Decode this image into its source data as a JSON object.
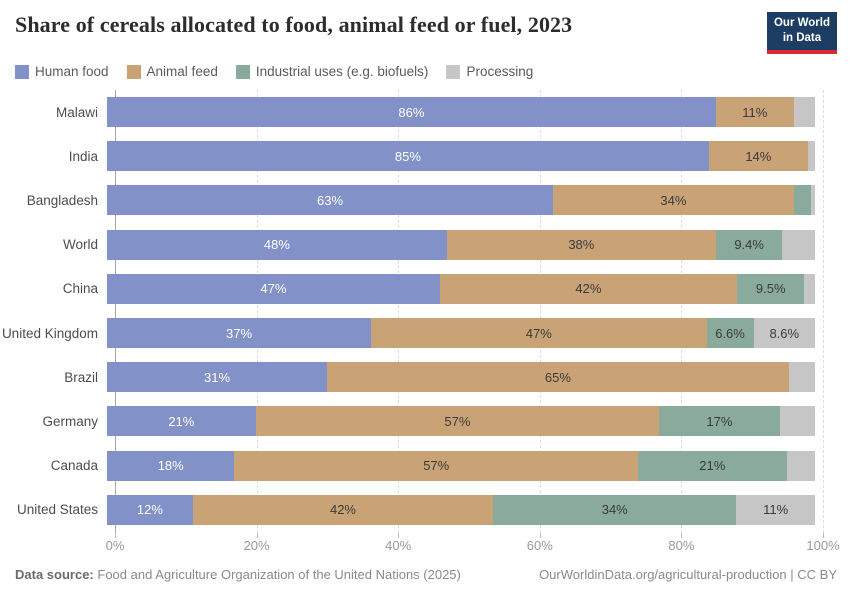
{
  "header": {
    "title": "Share of cereals allocated to food, animal feed or fuel, 2023",
    "logo": {
      "line1": "Our World",
      "line2": "in Data"
    },
    "logo_colors": {
      "background": "#1d3d63",
      "accent": "#d42b35"
    }
  },
  "legend": {
    "items": [
      {
        "key": "human_food",
        "label": "Human food",
        "color": "#8291c7"
      },
      {
        "key": "animal_feed",
        "label": "Animal feed",
        "color": "#c9a376"
      },
      {
        "key": "industrial",
        "label": "Industrial uses (e.g. biofuels)",
        "color": "#8aab9c"
      },
      {
        "key": "processing",
        "label": "Processing",
        "color": "#c6c6c6"
      }
    ]
  },
  "chart_data": {
    "type": "bar",
    "orientation": "horizontal",
    "stacked": true,
    "unit": "%",
    "xlim": [
      0,
      100
    ],
    "x_ticks": [
      "0%",
      "20%",
      "40%",
      "60%",
      "80%",
      "100%"
    ],
    "x_tick_values": [
      0,
      20,
      40,
      60,
      80,
      100
    ],
    "grid": "dashed-vertical",
    "legend_position": "top",
    "series_keys": [
      "human_food",
      "animal_feed",
      "industrial",
      "processing"
    ],
    "categories": [
      "Malawi",
      "India",
      "Bangladesh",
      "World",
      "China",
      "United Kingdom",
      "Brazil",
      "Germany",
      "Canada",
      "United States"
    ],
    "rows": [
      {
        "country": "Malawi",
        "values": {
          "human_food": 86,
          "animal_feed": 11,
          "industrial": 0,
          "processing": 3
        },
        "labels": {
          "human_food": "86%",
          "animal_feed": "11%"
        }
      },
      {
        "country": "India",
        "values": {
          "human_food": 85,
          "animal_feed": 14,
          "industrial": 0,
          "processing": 1
        },
        "labels": {
          "human_food": "85%",
          "animal_feed": "14%"
        }
      },
      {
        "country": "Bangladesh",
        "values": {
          "human_food": 63,
          "animal_feed": 34,
          "industrial": 2.4,
          "processing": 0.6
        },
        "labels": {
          "human_food": "63%",
          "animal_feed": "34%"
        }
      },
      {
        "country": "World",
        "values": {
          "human_food": 48,
          "animal_feed": 38,
          "industrial": 9.4,
          "processing": 4.6
        },
        "labels": {
          "human_food": "48%",
          "animal_feed": "38%",
          "industrial": "9.4%"
        }
      },
      {
        "country": "China",
        "values": {
          "human_food": 47,
          "animal_feed": 42,
          "industrial": 9.5,
          "processing": 1.5
        },
        "labels": {
          "human_food": "47%",
          "animal_feed": "42%",
          "industrial": "9.5%"
        }
      },
      {
        "country": "United Kingdom",
        "values": {
          "human_food": 37,
          "animal_feed": 47,
          "industrial": 6.6,
          "processing": 8.6
        },
        "labels": {
          "human_food": "37%",
          "animal_feed": "47%",
          "industrial": "6.6%",
          "processing": "8.6%"
        }
      },
      {
        "country": "Brazil",
        "values": {
          "human_food": 31,
          "animal_feed": 65,
          "industrial": 0,
          "processing": 3.7
        },
        "labels": {
          "human_food": "31%",
          "animal_feed": "65%"
        }
      },
      {
        "country": "Germany",
        "values": {
          "human_food": 21,
          "animal_feed": 57,
          "industrial": 17,
          "processing": 5
        },
        "labels": {
          "human_food": "21%",
          "animal_feed": "57%",
          "industrial": "17%"
        }
      },
      {
        "country": "Canada",
        "values": {
          "human_food": 18,
          "animal_feed": 57,
          "industrial": 21,
          "processing": 4
        },
        "labels": {
          "human_food": "18%",
          "animal_feed": "57%",
          "industrial": "21%"
        }
      },
      {
        "country": "United States",
        "values": {
          "human_food": 12,
          "animal_feed": 42,
          "industrial": 34,
          "processing": 11
        },
        "labels": {
          "human_food": "12%",
          "animal_feed": "42%",
          "industrial": "34%",
          "processing": "11%"
        }
      }
    ]
  },
  "footer": {
    "source_label": "Data source:",
    "source_text": "Food and Agriculture Organization of the United Nations (2025)",
    "right_text": "OurWorldinData.org/agricultural-production | CC BY"
  }
}
